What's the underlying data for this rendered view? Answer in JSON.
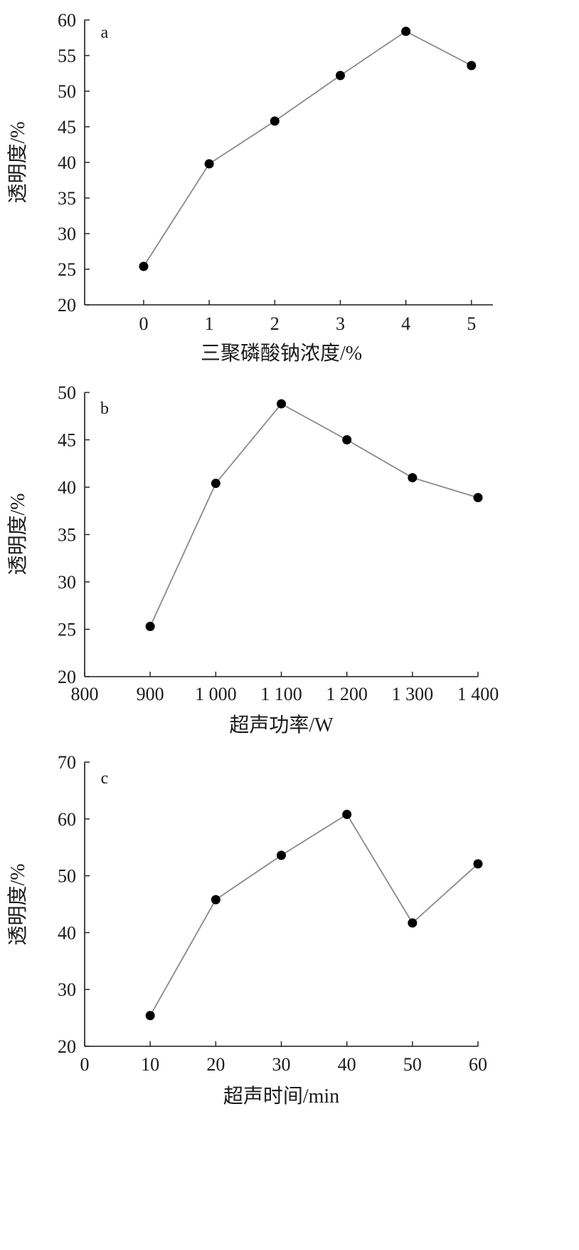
{
  "chart_data": [
    {
      "type": "line",
      "panel_label": "a",
      "x": [
        0,
        1,
        2,
        3,
        4,
        5
      ],
      "y": [
        25.4,
        39.8,
        45.8,
        52.2,
        58.4,
        53.6
      ],
      "xlabel": "三聚磷酸钠浓度/%",
      "ylabel": "透明度/%",
      "xlim": [
        -0.9,
        5.1
      ],
      "ylim": [
        20,
        60
      ],
      "xticks": [
        "0",
        "1",
        "2",
        "3",
        "4",
        "5"
      ],
      "yticks": [
        "20",
        "25",
        "30",
        "35",
        "40",
        "45",
        "50",
        "55",
        "60"
      ],
      "grid": false
    },
    {
      "type": "line",
      "panel_label": "b",
      "x": [
        900,
        1000,
        1100,
        1200,
        1300,
        1400
      ],
      "y": [
        25.3,
        40.4,
        48.8,
        45.0,
        41.0,
        38.9
      ],
      "xlabel": "超声功率/W",
      "ylabel": "透明度/%",
      "xlim": [
        800,
        1400
      ],
      "ylim": [
        20,
        50
      ],
      "xticks": [
        "800",
        "900",
        "1 000",
        "1 100",
        "1 200",
        "1 300",
        "1 400"
      ],
      "yticks": [
        "20",
        "25",
        "30",
        "35",
        "40",
        "45",
        "50"
      ],
      "grid": false
    },
    {
      "type": "line",
      "panel_label": "c",
      "x": [
        10,
        20,
        30,
        40,
        50,
        60
      ],
      "y": [
        25.4,
        45.8,
        53.6,
        60.8,
        41.7,
        52.1
      ],
      "xlabel": "超声时间/min",
      "ylabel": "透明度/%",
      "xlim": [
        0,
        60
      ],
      "ylim": [
        20,
        70
      ],
      "xticks": [
        "0",
        "10",
        "20",
        "30",
        "40",
        "50",
        "60"
      ],
      "yticks": [
        "20",
        "30",
        "40",
        "50",
        "60",
        "70"
      ],
      "grid": false
    }
  ]
}
